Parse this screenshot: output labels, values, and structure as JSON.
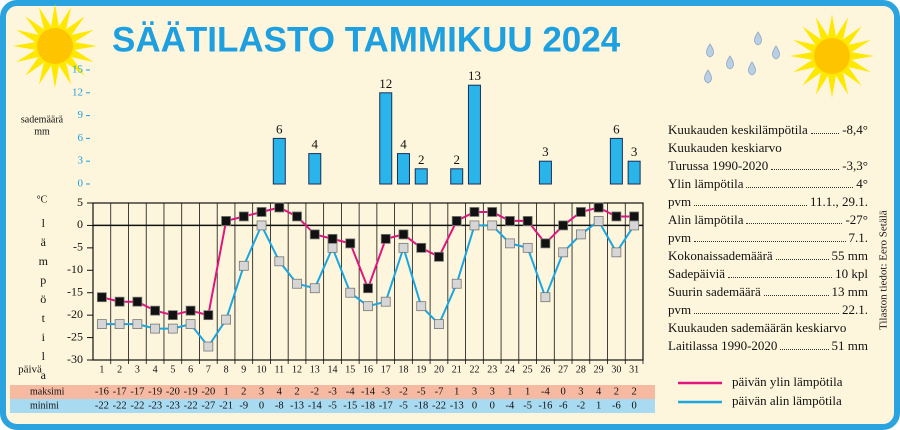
{
  "title": "SÄÄTILASTO TAMMIKUU 2024",
  "credit": "Tilaston tiedot: Eero Setälä",
  "chart_data": [
    {
      "type": "bar",
      "ylabel": [
        "sademäärä",
        "mm"
      ],
      "x": [
        1,
        2,
        3,
        4,
        5,
        6,
        7,
        8,
        9,
        10,
        11,
        12,
        13,
        14,
        15,
        16,
        17,
        18,
        19,
        20,
        21,
        22,
        23,
        24,
        25,
        26,
        27,
        28,
        29,
        30,
        31
      ],
      "values": [
        null,
        null,
        null,
        null,
        null,
        null,
        null,
        null,
        null,
        null,
        6,
        null,
        4,
        null,
        null,
        null,
        12,
        4,
        2,
        null,
        2,
        13,
        null,
        null,
        null,
        3,
        null,
        null,
        null,
        6,
        3
      ],
      "color": "#2ab5ea",
      "ylim": [
        0,
        15
      ],
      "yticks": [
        0,
        3,
        6,
        9,
        12,
        15
      ]
    },
    {
      "type": "line",
      "unit": "°C",
      "ylabel": "lämpötila",
      "xlabel": "päivä",
      "x": [
        1,
        2,
        3,
        4,
        5,
        6,
        7,
        8,
        9,
        10,
        11,
        12,
        13,
        14,
        15,
        16,
        17,
        18,
        19,
        20,
        21,
        22,
        23,
        24,
        25,
        26,
        27,
        28,
        29,
        30,
        31
      ],
      "table_labels": [
        "maksimi",
        "minimi"
      ],
      "series": [
        {
          "name": "päivän ylin lämpötila",
          "color": "#e0157f",
          "marker_color": "#111111",
          "row_color": "#f6b9a2",
          "values": [
            -16,
            -17,
            -17,
            -19,
            -20,
            -19,
            -20,
            1,
            2,
            3,
            4,
            2,
            -2,
            -3,
            -4,
            -14,
            -3,
            -2,
            -5,
            -7,
            1,
            3,
            3,
            1,
            1,
            -4,
            0,
            3,
            4,
            2,
            2
          ]
        },
        {
          "name": "päivän alin lämpötila",
          "color": "#1aa6e0",
          "marker_color": "#d6d6d6",
          "row_color": "#a8daf2",
          "values": [
            -22,
            -22,
            -22,
            -23,
            -23,
            -22,
            -27,
            -21,
            -9,
            0,
            -8,
            -13,
            -14,
            -5,
            -15,
            -18,
            -17,
            -5,
            -18,
            -22,
            -13,
            0,
            0,
            -4,
            -5,
            -16,
            -6,
            -2,
            1,
            -6,
            0
          ]
        }
      ],
      "ylim": [
        -30,
        5
      ],
      "yticks": [
        5,
        0,
        -5,
        -10,
        -15,
        -20,
        -25,
        -30
      ],
      "grid": true
    }
  ],
  "stats": [
    {
      "label": "Kuukauden keskilämpötila",
      "value": "-8,4°"
    },
    {
      "label": "Kuukauden keskiarvo"
    },
    {
      "label": "Turussa 1990-2020",
      "value": "-3,3°"
    },
    {
      "label": "Ylin lämpötila",
      "value": "4°"
    },
    {
      "label": "pvm",
      "value": "11.1., 29.1."
    },
    {
      "label": "Alin lämpötila",
      "value": "-27°"
    },
    {
      "label": "pvm",
      "value": "7.1."
    },
    {
      "label": "Kokonaissademäärä",
      "value": "55 mm"
    },
    {
      "label": "Sadepäiviä",
      "value": "10 kpl"
    },
    {
      "label": "Suurin sademäärä",
      "value": "13 mm"
    },
    {
      "label": "pvm",
      "value": "22.1."
    },
    {
      "label": "Kuukauden sademäärän keskiarvo"
    },
    {
      "label": "Laitilassa 1990-2020",
      "value": "51 mm"
    }
  ]
}
